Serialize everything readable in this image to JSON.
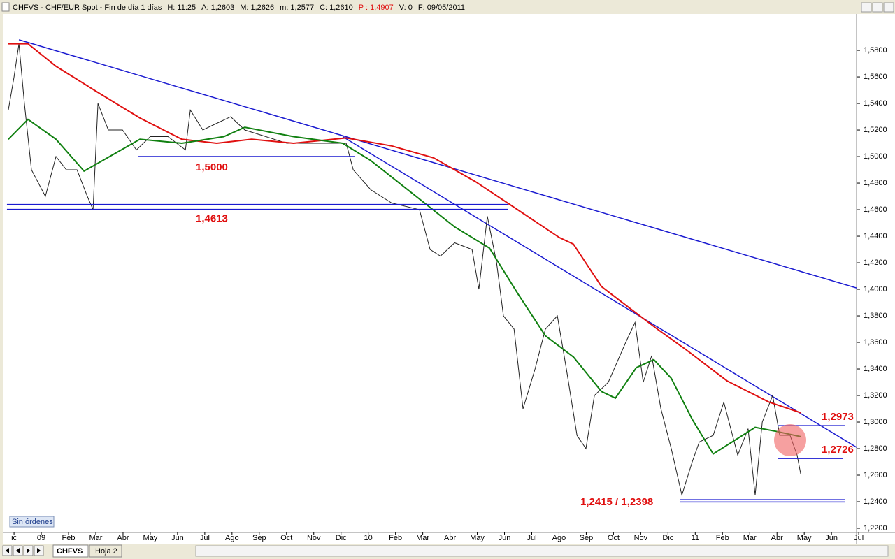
{
  "header": {
    "symbol": "CHFVS - CHF/EUR Spot - Fin de día 1 días",
    "fields": [
      "H: 11:25",
      "A: 1,2603",
      "M: 1,2626",
      "m: 1,2577",
      "C: 1,2610"
    ],
    "highlight": "P : 1,4907",
    "rest": [
      "V: 0",
      "F: 09/05/2011"
    ]
  },
  "chart_data": {
    "type": "line",
    "xlim": [
      -0.31,
      30.92
    ],
    "xticks": [
      {
        "value": 0,
        "label": "ic"
      },
      {
        "value": 1,
        "label": "09"
      },
      {
        "value": 2,
        "label": "Feb"
      },
      {
        "value": 3,
        "label": "Mar"
      },
      {
        "value": 4,
        "label": "Abr"
      },
      {
        "value": 5,
        "label": "May"
      },
      {
        "value": 6,
        "label": "Jun"
      },
      {
        "value": 7,
        "label": "Jul"
      },
      {
        "value": 8,
        "label": "Ago"
      },
      {
        "value": 9,
        "label": "Sep"
      },
      {
        "value": 10,
        "label": "Oct"
      },
      {
        "value": 11,
        "label": "Nov"
      },
      {
        "value": 12,
        "label": "Dic"
      },
      {
        "value": 13,
        "label": "10"
      },
      {
        "value": 14,
        "label": "Feb"
      },
      {
        "value": 15,
        "label": "Mar"
      },
      {
        "value": 16,
        "label": "Abr"
      },
      {
        "value": 17,
        "label": "May"
      },
      {
        "value": 18,
        "label": "Jun"
      },
      {
        "value": 19,
        "label": "Jul"
      },
      {
        "value": 20,
        "label": "Ago"
      },
      {
        "value": 21,
        "label": "Sep"
      },
      {
        "value": 22,
        "label": "Oct"
      },
      {
        "value": 23,
        "label": "Nov"
      },
      {
        "value": 24,
        "label": "Dic"
      },
      {
        "value": 25,
        "label": "11"
      },
      {
        "value": 26,
        "label": "Feb"
      },
      {
        "value": 27,
        "label": "Mar"
      },
      {
        "value": 28,
        "label": "Abr"
      },
      {
        "value": 29,
        "label": "May"
      },
      {
        "value": 30,
        "label": "Jun"
      },
      {
        "value": 31,
        "label": "Jul"
      }
    ],
    "ylim": [
      1.2179,
      1.6074
    ],
    "yticks": [
      {
        "value": 1.22,
        "label": "1,2200"
      },
      {
        "value": 1.24,
        "label": "1,2400"
      },
      {
        "value": 1.26,
        "label": "1,2600"
      },
      {
        "value": 1.28,
        "label": "1,2800"
      },
      {
        "value": 1.3,
        "label": "1,3000"
      },
      {
        "value": 1.32,
        "label": "1,3200"
      },
      {
        "value": 1.34,
        "label": "1,3400"
      },
      {
        "value": 1.36,
        "label": "1,3600"
      },
      {
        "value": 1.38,
        "label": "1,3800"
      },
      {
        "value": 1.4,
        "label": "1,4000"
      },
      {
        "value": 1.42,
        "label": "1,4200"
      },
      {
        "value": 1.44,
        "label": "1,4400"
      },
      {
        "value": 1.46,
        "label": "1,4600"
      },
      {
        "value": 1.48,
        "label": "1,4800"
      },
      {
        "value": 1.5,
        "label": "1,5000"
      },
      {
        "value": 1.52,
        "label": "1,5200"
      },
      {
        "value": 1.54,
        "label": "1,5400"
      },
      {
        "value": 1.56,
        "label": "1,5600"
      },
      {
        "value": 1.58,
        "label": "1,5800"
      }
    ],
    "series": [
      {
        "color": "#222222",
        "x": [
          -0.21,
          0,
          0.18,
          0.38,
          0.64,
          1.15,
          1.54,
          1.92,
          2.31,
          2.69,
          2.9,
          3.08,
          3.46,
          3.98,
          4.49,
          5,
          5.65,
          6.29,
          6.47,
          6.93,
          7.44,
          7.95,
          8.47,
          9.24,
          10.01,
          10.78,
          11.55,
          12.19,
          12.45,
          13.09,
          13.86,
          14.88,
          15.27,
          15.65,
          16.17,
          16.81,
          17.06,
          17.37,
          17.71,
          17.96,
          18.35,
          18.68,
          19.12,
          19.5,
          19.94,
          20.27,
          20.66,
          20.99,
          21.3,
          21.81,
          22.45,
          22.79,
          23.09,
          23.4,
          23.74,
          24.12,
          24.51,
          24.89,
          25.15,
          25.66,
          26.05,
          26.56,
          26.94,
          27.2,
          27.46,
          27.84,
          28.1,
          28.48,
          28.74,
          28.87
        ],
        "values": [
          1.535,
          1.56,
          1.585,
          1.54,
          1.49,
          1.47,
          1.5,
          1.49,
          1.49,
          1.47,
          1.46,
          1.54,
          1.52,
          1.52,
          1.505,
          1.515,
          1.515,
          1.505,
          1.535,
          1.52,
          1.525,
          1.53,
          1.52,
          1.515,
          1.51,
          1.51,
          1.51,
          1.51,
          1.49,
          1.475,
          1.465,
          1.46,
          1.43,
          1.425,
          1.435,
          1.43,
          1.4,
          1.455,
          1.42,
          1.38,
          1.37,
          1.31,
          1.34,
          1.37,
          1.38,
          1.34,
          1.29,
          1.28,
          1.32,
          1.33,
          1.36,
          1.375,
          1.33,
          1.35,
          1.31,
          1.28,
          1.245,
          1.27,
          1.285,
          1.29,
          1.315,
          1.275,
          1.295,
          1.245,
          1.3,
          1.32,
          1.29,
          1.29,
          1.275,
          1.261
        ]
      },
      {
        "color": "#e01010",
        "x": [
          -0.21,
          0.51,
          1.54,
          2.95,
          4.62,
          6.16,
          7.44,
          8.72,
          10.26,
          12.19,
          13.86,
          15.4,
          16.94,
          18.48,
          20.01,
          20.53,
          21.56,
          22.58,
          23.61,
          24.63,
          26.17,
          27.71,
          28.87
        ],
        "values": [
          1.585,
          1.585,
          1.568,
          1.55,
          1.529,
          1.513,
          1.51,
          1.513,
          1.51,
          1.514,
          1.508,
          1.499,
          1.481,
          1.46,
          1.439,
          1.434,
          1.402,
          1.386,
          1.37,
          1.355,
          1.331,
          1.315,
          1.307
        ]
      },
      {
        "color": "#108010",
        "x": [
          -0.21,
          0.51,
          1.54,
          2.57,
          3.34,
          4.62,
          6.16,
          7.7,
          8.47,
          10.26,
          12.06,
          13.09,
          14.88,
          16.17,
          17.45,
          18.48,
          19.5,
          20.53,
          21.56,
          22.07,
          22.84,
          23.48,
          24.12,
          24.89,
          25.66,
          26.43,
          27.2,
          27.97,
          28.87
        ],
        "values": [
          1.513,
          1.528,
          1.513,
          1.489,
          1.498,
          1.513,
          1.51,
          1.515,
          1.522,
          1.515,
          1.51,
          1.497,
          1.468,
          1.447,
          1.431,
          1.397,
          1.365,
          1.349,
          1.323,
          1.318,
          1.341,
          1.347,
          1.333,
          1.302,
          1.276,
          1.286,
          1.296,
          1.293,
          1.289
        ]
      }
    ],
    "trendlines": [
      {
        "x": [
          0.18,
          30.92
        ],
        "values": [
          1.588,
          1.401
        ]
      },
      {
        "x": [
          12.06,
          30.92
        ],
        "values": [
          1.515,
          1.281
        ]
      }
    ],
    "levels": [
      {
        "values": [
          1.5
        ],
        "x": [
          4.55,
          12.52
        ],
        "label": "1,5000"
      },
      {
        "values": [
          1.4613
        ],
        "x": [
          -0.26,
          18.12
        ],
        "label": "1,4613"
      },
      {
        "values": [
          1.2973
        ],
        "x": [
          28.03,
          30.49
        ],
        "label": "1,2973"
      },
      {
        "values": [
          1.2726
        ],
        "x": [
          28.03,
          30.42
        ],
        "label": "1,2726"
      },
      {
        "values": [
          1.2415,
          1.2398
        ],
        "x": [
          24.43,
          30.49
        ],
        "label": "1,2415 / 1,2398"
      }
    ]
  },
  "footer": {
    "orders": "Sin órdenes",
    "tabs": [
      "CHFVS",
      "Hoja 2"
    ]
  }
}
